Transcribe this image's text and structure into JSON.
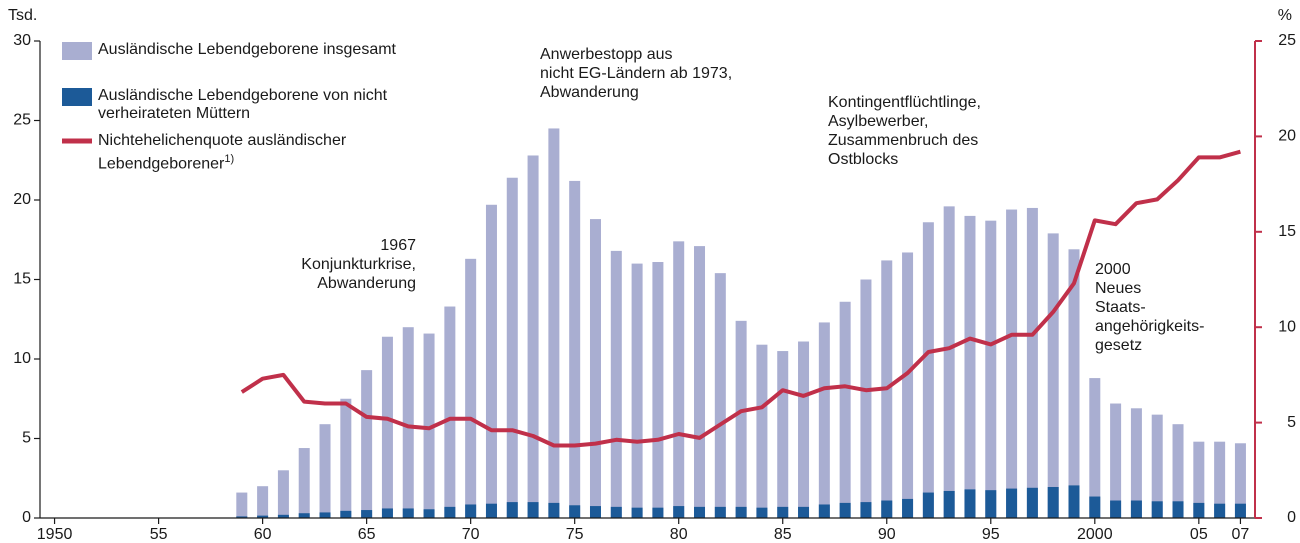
{
  "chart_data": {
    "type": "bar",
    "y_unit": "Tsd.",
    "y2_unit": "%",
    "x": [
      1959,
      1960,
      1961,
      1962,
      1963,
      1964,
      1965,
      1966,
      1967,
      1968,
      1969,
      1970,
      1971,
      1972,
      1973,
      1974,
      1975,
      1976,
      1977,
      1978,
      1979,
      1980,
      1981,
      1982,
      1983,
      1984,
      1985,
      1986,
      1987,
      1988,
      1989,
      1990,
      1991,
      1992,
      1993,
      1994,
      1995,
      1996,
      1997,
      1998,
      1999,
      2000,
      2001,
      2002,
      2003,
      2004,
      2005,
      2006,
      2007
    ],
    "series": [
      {
        "name": "Ausländische Lebendgeborene insgesamt",
        "type": "bar",
        "color": "#a9aed1",
        "values": [
          1.6,
          2.0,
          3.0,
          4.4,
          5.9,
          7.5,
          9.3,
          11.4,
          12.0,
          11.6,
          13.3,
          16.3,
          19.7,
          21.4,
          22.8,
          24.5,
          21.2,
          18.8,
          16.8,
          16.0,
          16.1,
          17.4,
          17.1,
          15.4,
          12.4,
          10.9,
          10.5,
          11.1,
          12.3,
          13.6,
          15.0,
          16.2,
          16.7,
          18.6,
          19.6,
          19.0,
          18.7,
          19.4,
          19.5,
          17.9,
          16.9,
          8.8,
          7.2,
          6.9,
          6.5,
          5.9,
          4.8,
          4.8,
          4.7
        ]
      },
      {
        "name": "Ausländische Lebendgeborene von nicht verheirateten Müttern",
        "type": "bar",
        "color": "#1c5a98",
        "values": [
          0.1,
          0.15,
          0.2,
          0.3,
          0.35,
          0.45,
          0.5,
          0.6,
          0.6,
          0.55,
          0.7,
          0.85,
          0.9,
          1.0,
          1.0,
          0.95,
          0.8,
          0.75,
          0.7,
          0.65,
          0.65,
          0.75,
          0.7,
          0.7,
          0.7,
          0.65,
          0.7,
          0.7,
          0.85,
          0.95,
          1.0,
          1.1,
          1.2,
          1.6,
          1.7,
          1.8,
          1.75,
          1.85,
          1.9,
          1.95,
          2.05,
          1.35,
          1.1,
          1.1,
          1.05,
          1.05,
          0.95,
          0.9,
          0.9
        ]
      },
      {
        "name": "Nichtehelichenquote ausländischer Lebendgeborener",
        "name_footnote": "1)",
        "type": "line",
        "axis": "y2",
        "color": "#c0304a",
        "values": [
          6.6,
          7.3,
          7.5,
          6.1,
          6.0,
          6.0,
          5.3,
          5.2,
          4.8,
          4.7,
          5.2,
          5.2,
          4.6,
          4.6,
          4.3,
          3.8,
          3.8,
          3.9,
          4.1,
          4.0,
          4.1,
          4.4,
          4.2,
          4.9,
          5.6,
          5.8,
          6.7,
          6.4,
          6.8,
          6.9,
          6.7,
          6.8,
          7.6,
          8.7,
          8.9,
          9.4,
          9.1,
          9.6,
          9.6,
          10.8,
          12.3,
          15.6,
          15.4,
          16.5,
          16.7,
          17.7,
          18.9,
          18.9,
          19.2
        ]
      }
    ],
    "xlim": [
      1949.3,
      2007.7
    ],
    "xticks": [
      1950,
      {
        "value": 1955,
        "label": "55"
      },
      {
        "value": 1960,
        "label": "60"
      },
      {
        "value": 1965,
        "label": "65"
      },
      {
        "value": 1970,
        "label": "70"
      },
      {
        "value": 1975,
        "label": "75"
      },
      {
        "value": 1980,
        "label": "80"
      },
      {
        "value": 1985,
        "label": "85"
      },
      {
        "value": 1990,
        "label": "90"
      },
      {
        "value": 1995,
        "label": "95"
      },
      2000,
      {
        "value": 2005,
        "label": "05"
      },
      {
        "value": 2007,
        "label": "07"
      }
    ],
    "ylim": [
      0,
      30
    ],
    "yticks": [
      0,
      5,
      10,
      15,
      20,
      25,
      30
    ],
    "y2lim": [
      0,
      25
    ],
    "y2ticks": [
      0,
      5,
      10,
      15,
      20,
      25
    ],
    "annotations": [
      {
        "lines": [
          "1967",
          "Konjunkturkrise,",
          "Abwanderung"
        ]
      },
      {
        "lines": [
          "Anwerbestopp aus",
          "nicht EG-Ländern ab 1973,",
          "Abwanderung"
        ]
      },
      {
        "lines": [
          "Kontingentflüchtlinge,",
          "Asylbewerber,",
          "Zusammenbruch des",
          "Ostblocks"
        ]
      },
      {
        "lines": [
          "2000",
          "Neues",
          "Staats-",
          "angehörigkeits-",
          "gesetz"
        ]
      }
    ]
  }
}
